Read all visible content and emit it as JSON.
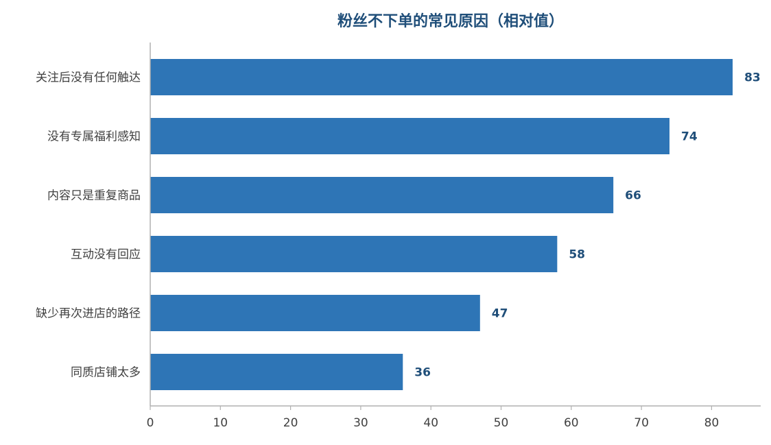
{
  "chart_data": {
    "type": "bar",
    "orientation": "horizontal",
    "title": "粉丝不下单的常见原因（相对值）",
    "categories": [
      "关注后没有任何触达",
      "没有专属福利感知",
      "内容只是重复商品",
      "互动没有回应",
      "缺少再次进店的路径",
      "同质店铺太多"
    ],
    "values": [
      83,
      74,
      66,
      58,
      47,
      36
    ],
    "xlabel": "",
    "ylabel": "",
    "xlim": [
      0,
      87
    ],
    "xticks": [
      0,
      10,
      20,
      30,
      40,
      50,
      60,
      70,
      80
    ],
    "grid": false,
    "legend": "none",
    "colors": {
      "bar": "#2e75b6",
      "title": "#1f4e79",
      "value_label": "#1f4e79",
      "axis": "#b0b0b0",
      "label_text": "#404040"
    }
  }
}
